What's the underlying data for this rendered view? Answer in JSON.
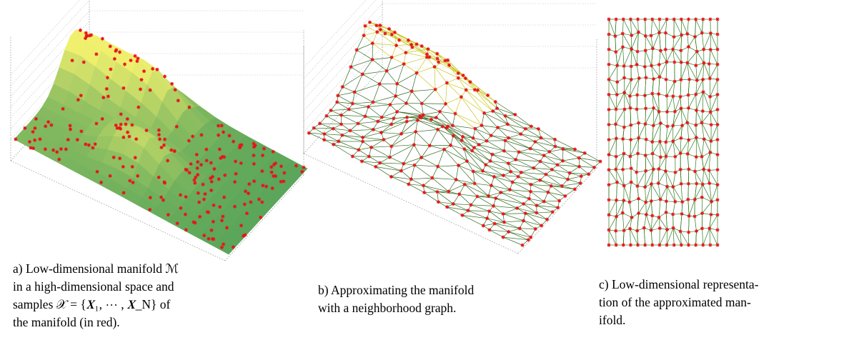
{
  "panels": [
    {
      "caption": [
        "a) Low-dimensional manifold ℳ",
        "in a high-dimensional space and",
        "samples 𝒳 = {𝑿₁, ⋯ , 𝑿_N} of",
        "the manifold (in red)."
      ]
    },
    {
      "caption": [
        "b) Approximating the manifold",
        "with a neighborhood graph."
      ]
    },
    {
      "caption": [
        "c) Low-dimensional representa-",
        "tion of the approximated man-",
        "ifold."
      ]
    }
  ]
}
